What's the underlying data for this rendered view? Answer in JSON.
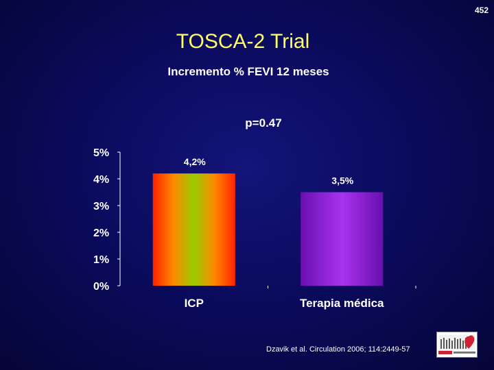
{
  "slide": {
    "number": "452",
    "title": "TOSCA-2 Trial",
    "subtitle": "Incremento % FEVI 12 meses",
    "p_value": "p=0.47",
    "citation": "Dzavik et al. Circulation 2006; 114:2449-57",
    "logo_icon": "hospital-logo-icon"
  },
  "colors": {
    "title": "#ffff66",
    "icp_gradient": [
      "#ff2200",
      "#ff8800",
      "#99cc00",
      "#ff8800",
      "#ff2200"
    ],
    "terapia_gradient": [
      "#6a0fb0",
      "#a833ee",
      "#6a0fb0"
    ]
  },
  "chart_data": {
    "type": "bar",
    "categories": [
      "ICP",
      "Terapia médica"
    ],
    "values": [
      4.2,
      3.5
    ],
    "data_labels": [
      "4,2%",
      "3,5%"
    ],
    "yticks": [
      "0%",
      "1%",
      "2%",
      "3%",
      "4%",
      "5%"
    ],
    "ylim": [
      0,
      5
    ],
    "grid": false,
    "legend": "none"
  }
}
